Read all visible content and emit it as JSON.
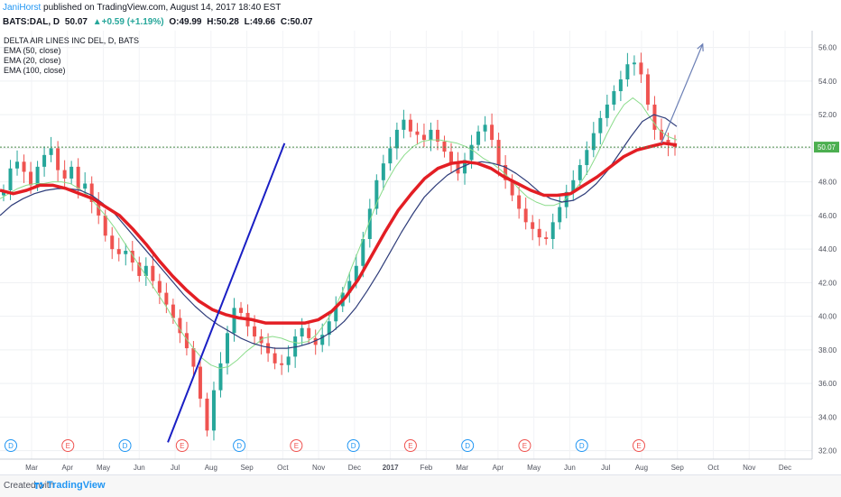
{
  "header": {
    "author": "JaniHorst",
    "published_text": "published on TradingView.com, August 14, 2017 18:40 EST",
    "symbol": "BATS:DAL, D",
    "close_value": "50.07",
    "change": "▲+0.59 (+1.19%)",
    "open": "O:49.99",
    "high": "H:50.28",
    "low": "L:49.66",
    "close": "C:50.07"
  },
  "legend": {
    "title": "DELTA AIR LINES INC DEL, D, BATS",
    "ema50": "EMA (50, close)",
    "ema20": "EMA (20, close)",
    "ema100": "EMA (100, close)"
  },
  "footer": {
    "created": "Created with",
    "brand": "TradingView"
  },
  "colors": {
    "up_candle": "#26a69a",
    "down_candle": "#ef5350",
    "ema100": "#e31e24",
    "ema50": "#2f3d7a",
    "ema20": "#8bdc8b",
    "trendline": "#1a1fc4",
    "projection": "#6b7fb5",
    "last_price_line": "#4a8a4a",
    "price_badge": "#4caf50"
  },
  "chart_data": {
    "type": "candlestick",
    "y_axis_ticks": [
      "56.00",
      "54.00",
      "52.00",
      "50.00",
      "48.00",
      "46.00",
      "44.00",
      "42.00",
      "40.00",
      "38.00",
      "36.00",
      "34.00",
      "32.00"
    ],
    "ylim": [
      31.5,
      57
    ],
    "x_axis_ticks": [
      "Mar",
      "Apr",
      "May",
      "Jun",
      "Jul",
      "Aug",
      "Sep",
      "Oct",
      "Nov",
      "Dec",
      "2017",
      "Feb",
      "Mar",
      "Apr",
      "May",
      "Jun",
      "Jul",
      "Aug",
      "Sep",
      "Oct",
      "Nov",
      "Dec"
    ],
    "last_price_label": "50.07",
    "last_price": 50.07,
    "close_series": [
      47.5,
      48.8,
      49.2,
      48.6,
      47.8,
      48.9,
      49.6,
      50.0,
      48.7,
      48.2,
      48.9,
      47.6,
      47.9,
      46.8,
      46.0,
      44.8,
      44.0,
      43.7,
      43.9,
      43.2,
      42.4,
      43.0,
      42.1,
      41.4,
      40.7,
      39.9,
      39.0,
      38.1,
      37.0,
      35.1,
      33.2,
      35.6,
      37.2,
      39.0,
      40.5,
      40.2,
      39.4,
      38.8,
      38.4,
      37.8,
      37.2,
      37.1,
      37.6,
      38.8,
      39.3,
      38.7,
      38.3,
      38.9,
      39.7,
      40.6,
      41.4,
      42.1,
      43.0,
      44.6,
      46.4,
      48.1,
      49.1,
      50.0,
      51.1,
      51.7,
      51.0,
      50.8,
      50.5,
      51.1,
      50.4,
      49.8,
      49.1,
      48.5,
      49.3,
      50.2,
      51.0,
      51.4,
      50.5,
      49.0,
      48.1,
      47.2,
      46.4,
      45.6,
      45.2,
      44.7,
      44.6,
      45.6,
      46.5,
      47.4,
      48.1,
      49.0,
      49.9,
      50.9,
      51.8,
      52.6,
      53.4,
      54.1,
      55.0,
      55.1,
      54.4,
      52.6,
      51.1,
      50.5,
      50.2,
      50.07
    ],
    "ema20": [
      47.0,
      47.3,
      47.6,
      47.8,
      47.9,
      47.9,
      48.0,
      48.0,
      47.9,
      47.6,
      47.2,
      46.6,
      46.0,
      45.3,
      44.5,
      43.7,
      42.9,
      42.1,
      41.3,
      40.5,
      39.6,
      38.8,
      38.1,
      37.5,
      37.1,
      36.9,
      37.0,
      37.4,
      37.9,
      38.3,
      38.7,
      38.8,
      38.7,
      38.5,
      38.4,
      38.5,
      38.9,
      39.6,
      40.4,
      41.5,
      42.9,
      44.2,
      45.6,
      46.9,
      48.0,
      48.9,
      49.6,
      50.1,
      50.4,
      50.5,
      50.5,
      50.4,
      50.3,
      50.1,
      49.8,
      49.4,
      49.1,
      48.7,
      48.2,
      47.6,
      47.1,
      46.8,
      46.6,
      46.6,
      46.8,
      47.3,
      47.9,
      48.7,
      49.7,
      50.8,
      51.8,
      52.6,
      53.0,
      52.6,
      51.8,
      51.1,
      50.7,
      50.5
    ],
    "ema50": [
      46.0,
      46.6,
      47.0,
      47.3,
      47.5,
      47.6,
      47.6,
      47.5,
      47.2,
      46.7,
      46.1,
      45.3,
      44.5,
      43.7,
      42.9,
      42.1,
      41.3,
      40.6,
      40.0,
      39.5,
      39.1,
      38.7,
      38.4,
      38.2,
      38.1,
      38.1,
      38.2,
      38.4,
      38.7,
      39.1,
      39.7,
      40.5,
      41.5,
      42.6,
      43.8,
      45.0,
      46.1,
      47.1,
      47.8,
      48.4,
      48.8,
      49.1,
      49.2,
      49.1,
      48.9,
      48.5,
      48.0,
      47.4,
      47.0,
      46.8,
      46.9,
      47.3,
      47.9,
      48.7,
      49.7,
      50.7,
      51.6,
      52.0,
      51.8,
      51.3
    ],
    "ema100": [
      47.5,
      47.3,
      47.5,
      47.8,
      47.8,
      47.6,
      47.3,
      47.0,
      46.5,
      46.0,
      45.2,
      44.3,
      43.3,
      42.4,
      41.6,
      40.9,
      40.4,
      40.1,
      39.9,
      39.8,
      39.6,
      39.6,
      39.6,
      39.6,
      39.8,
      40.3,
      41.1,
      42.2,
      43.6,
      45.0,
      46.3,
      47.3,
      48.2,
      48.8,
      49.1,
      49.2,
      49.1,
      48.8,
      48.3,
      47.9,
      47.5,
      47.2,
      47.2,
      47.3,
      47.8,
      48.3,
      48.9,
      49.5,
      49.9,
      50.1,
      50.3,
      50.2
    ],
    "trendline": {
      "from": [
        "Jul",
        32.5
      ],
      "to": [
        "Oct",
        50.3
      ]
    },
    "projection_arrow": {
      "from": [
        "Aug",
        50.3
      ],
      "to": [
        "Sep",
        56.2
      ]
    },
    "event_markers": [
      {
        "label": "D",
        "color": "#2196f3"
      },
      {
        "label": "E",
        "color": "#ef5350"
      },
      {
        "label": "D",
        "color": "#2196f3"
      },
      {
        "label": "E",
        "color": "#ef5350"
      },
      {
        "label": "D",
        "color": "#2196f3"
      },
      {
        "label": "E",
        "color": "#ef5350"
      },
      {
        "label": "D",
        "color": "#2196f3"
      },
      {
        "label": "E",
        "color": "#ef5350"
      },
      {
        "label": "D",
        "color": "#2196f3"
      },
      {
        "label": "E",
        "color": "#ef5350"
      },
      {
        "label": "D",
        "color": "#2196f3"
      },
      {
        "label": "E",
        "color": "#ef5350"
      }
    ]
  }
}
